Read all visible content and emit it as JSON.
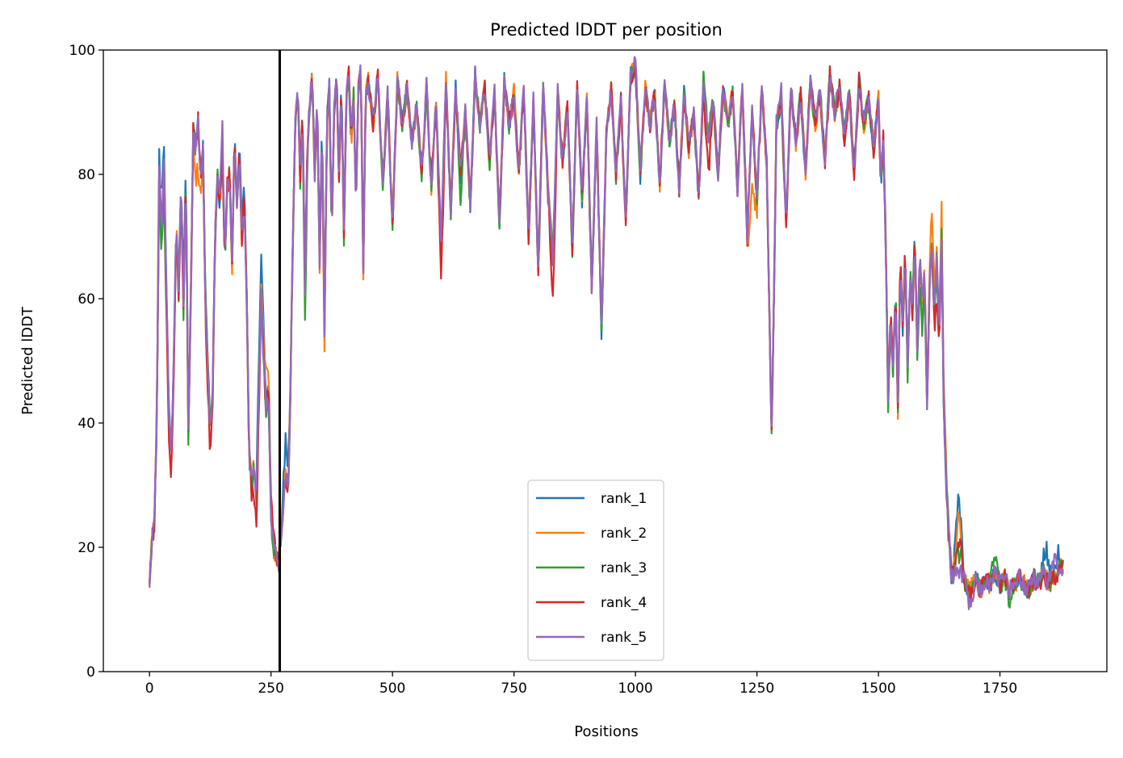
{
  "chart_data": {
    "type": "line",
    "title": "Predicted lDDT per position",
    "xlabel": "Positions",
    "ylabel": "Predicted lDDT",
    "xlim": [
      -95,
      1970
    ],
    "ylim": [
      0,
      100
    ],
    "xticks": [
      0,
      250,
      500,
      750,
      1000,
      1250,
      1500,
      1750
    ],
    "yticks": [
      0,
      20,
      40,
      60,
      80,
      100
    ],
    "grid": false,
    "legend_position": "bottom-center",
    "vline_x": 268,
    "vline_color": "#000000",
    "base_profile": [
      [
        0,
        15
      ],
      [
        5,
        21
      ],
      [
        10,
        24
      ],
      [
        15,
        40
      ],
      [
        20,
        80
      ],
      [
        25,
        70
      ],
      [
        30,
        82
      ],
      [
        35,
        60
      ],
      [
        40,
        42
      ],
      [
        45,
        35
      ],
      [
        50,
        50
      ],
      [
        55,
        72
      ],
      [
        60,
        60
      ],
      [
        65,
        78
      ],
      [
        70,
        58
      ],
      [
        75,
        80
      ],
      [
        80,
        38
      ],
      [
        85,
        60
      ],
      [
        90,
        87
      ],
      [
        95,
        84
      ],
      [
        100,
        89
      ],
      [
        105,
        80
      ],
      [
        110,
        84
      ],
      [
        115,
        60
      ],
      [
        120,
        50
      ],
      [
        125,
        38
      ],
      [
        130,
        45
      ],
      [
        135,
        70
      ],
      [
        140,
        80
      ],
      [
        145,
        75
      ],
      [
        150,
        84
      ],
      [
        155,
        66
      ],
      [
        160,
        78
      ],
      [
        165,
        80
      ],
      [
        170,
        65
      ],
      [
        175,
        86
      ],
      [
        180,
        75
      ],
      [
        185,
        83
      ],
      [
        190,
        70
      ],
      [
        195,
        76
      ],
      [
        200,
        60
      ],
      [
        205,
        35
      ],
      [
        210,
        30
      ],
      [
        215,
        33
      ],
      [
        220,
        28
      ],
      [
        225,
        45
      ],
      [
        230,
        60
      ],
      [
        235,
        50
      ],
      [
        240,
        42
      ],
      [
        245,
        45
      ],
      [
        250,
        25
      ],
      [
        255,
        20
      ],
      [
        260,
        19
      ],
      [
        265,
        18
      ],
      [
        270,
        22
      ],
      [
        275,
        26
      ],
      [
        280,
        32
      ],
      [
        285,
        28
      ],
      [
        290,
        45
      ],
      [
        295,
        70
      ],
      [
        300,
        88
      ],
      [
        305,
        93
      ],
      [
        310,
        80
      ],
      [
        315,
        90
      ],
      [
        320,
        62
      ],
      [
        325,
        85
      ],
      [
        330,
        92
      ],
      [
        335,
        96
      ],
      [
        340,
        80
      ],
      [
        345,
        92
      ],
      [
        350,
        66
      ],
      [
        355,
        89
      ],
      [
        360,
        55
      ],
      [
        365,
        88
      ],
      [
        370,
        94
      ],
      [
        375,
        70
      ],
      [
        380,
        90
      ],
      [
        385,
        96
      ],
      [
        390,
        80
      ],
      [
        395,
        94
      ],
      [
        400,
        70
      ],
      [
        405,
        92
      ],
      [
        410,
        96
      ],
      [
        415,
        85
      ],
      [
        420,
        93
      ],
      [
        425,
        75
      ],
      [
        430,
        94
      ],
      [
        435,
        97
      ],
      [
        440,
        64
      ],
      [
        445,
        93
      ],
      [
        450,
        95
      ],
      [
        460,
        88
      ],
      [
        470,
        96
      ],
      [
        480,
        78
      ],
      [
        490,
        93
      ],
      [
        500,
        72
      ],
      [
        510,
        95
      ],
      [
        520,
        88
      ],
      [
        530,
        94
      ],
      [
        540,
        85
      ],
      [
        550,
        91
      ],
      [
        560,
        80
      ],
      [
        570,
        94
      ],
      [
        580,
        78
      ],
      [
        590,
        92
      ],
      [
        600,
        68
      ],
      [
        610,
        95
      ],
      [
        620,
        74
      ],
      [
        630,
        94
      ],
      [
        640,
        80
      ],
      [
        650,
        90
      ],
      [
        660,
        75
      ],
      [
        670,
        96
      ],
      [
        680,
        88
      ],
      [
        690,
        94
      ],
      [
        700,
        82
      ],
      [
        710,
        93
      ],
      [
        720,
        72
      ],
      [
        730,
        95
      ],
      [
        740,
        88
      ],
      [
        750,
        93
      ],
      [
        760,
        80
      ],
      [
        770,
        94
      ],
      [
        780,
        70
      ],
      [
        790,
        92
      ],
      [
        800,
        64
      ],
      [
        810,
        94
      ],
      [
        820,
        78
      ],
      [
        830,
        66
      ],
      [
        840,
        93
      ],
      [
        850,
        82
      ],
      [
        860,
        91
      ],
      [
        870,
        68
      ],
      [
        880,
        95
      ],
      [
        890,
        76
      ],
      [
        900,
        92
      ],
      [
        910,
        62
      ],
      [
        920,
        88
      ],
      [
        930,
        55
      ],
      [
        940,
        86
      ],
      [
        950,
        94
      ],
      [
        960,
        80
      ],
      [
        970,
        92
      ],
      [
        980,
        72
      ],
      [
        990,
        96
      ],
      [
        1000,
        97
      ],
      [
        1010,
        80
      ],
      [
        1020,
        94
      ],
      [
        1030,
        88
      ],
      [
        1040,
        93
      ],
      [
        1050,
        78
      ],
      [
        1060,
        95
      ],
      [
        1070,
        85
      ],
      [
        1080,
        91
      ],
      [
        1090,
        78
      ],
      [
        1100,
        93
      ],
      [
        1110,
        84
      ],
      [
        1120,
        90
      ],
      [
        1130,
        76
      ],
      [
        1140,
        95
      ],
      [
        1150,
        86
      ],
      [
        1160,
        92
      ],
      [
        1170,
        80
      ],
      [
        1180,
        94
      ],
      [
        1190,
        88
      ],
      [
        1200,
        93
      ],
      [
        1210,
        78
      ],
      [
        1220,
        94
      ],
      [
        1230,
        70
      ],
      [
        1240,
        90
      ],
      [
        1250,
        76
      ],
      [
        1260,
        94
      ],
      [
        1270,
        82
      ],
      [
        1280,
        38
      ],
      [
        1285,
        60
      ],
      [
        1290,
        88
      ],
      [
        1300,
        92
      ],
      [
        1310,
        72
      ],
      [
        1320,
        94
      ],
      [
        1330,
        85
      ],
      [
        1340,
        93
      ],
      [
        1350,
        80
      ],
      [
        1360,
        95
      ],
      [
        1370,
        88
      ],
      [
        1380,
        93
      ],
      [
        1390,
        82
      ],
      [
        1400,
        96
      ],
      [
        1410,
        90
      ],
      [
        1420,
        94
      ],
      [
        1430,
        86
      ],
      [
        1440,
        93
      ],
      [
        1450,
        80
      ],
      [
        1460,
        95
      ],
      [
        1470,
        88
      ],
      [
        1480,
        92
      ],
      [
        1490,
        84
      ],
      [
        1500,
        92
      ],
      [
        1505,
        78
      ],
      [
        1510,
        86
      ],
      [
        1515,
        70
      ],
      [
        1520,
        44
      ],
      [
        1525,
        58
      ],
      [
        1530,
        48
      ],
      [
        1535,
        62
      ],
      [
        1540,
        42
      ],
      [
        1545,
        66
      ],
      [
        1550,
        55
      ],
      [
        1555,
        68
      ],
      [
        1560,
        48
      ],
      [
        1565,
        64
      ],
      [
        1570,
        58
      ],
      [
        1575,
        70
      ],
      [
        1580,
        52
      ],
      [
        1585,
        66
      ],
      [
        1590,
        60
      ],
      [
        1595,
        64
      ],
      [
        1600,
        42
      ],
      [
        1605,
        62
      ],
      [
        1610,
        68
      ],
      [
        1615,
        58
      ],
      [
        1620,
        66
      ],
      [
        1625,
        54
      ],
      [
        1630,
        70
      ],
      [
        1635,
        40
      ],
      [
        1640,
        30
      ],
      [
        1645,
        22
      ],
      [
        1650,
        16
      ],
      [
        1655,
        15
      ],
      [
        1660,
        16
      ],
      [
        1665,
        15
      ],
      [
        1670,
        16
      ],
      [
        1680,
        14
      ],
      [
        1690,
        12
      ],
      [
        1700,
        15
      ],
      [
        1710,
        13
      ],
      [
        1720,
        15
      ],
      [
        1730,
        14
      ],
      [
        1740,
        16
      ],
      [
        1750,
        14
      ],
      [
        1760,
        15
      ],
      [
        1770,
        13
      ],
      [
        1780,
        14
      ],
      [
        1790,
        15
      ],
      [
        1800,
        14
      ],
      [
        1810,
        13
      ],
      [
        1820,
        15
      ],
      [
        1830,
        14
      ],
      [
        1840,
        16
      ],
      [
        1850,
        14
      ],
      [
        1860,
        15
      ],
      [
        1870,
        16
      ],
      [
        1875,
        17
      ],
      [
        1880,
        17
      ]
    ],
    "series": [
      {
        "name": "rank_1",
        "color": "#1f77b4",
        "deviations": [
          [
            25,
            5
          ],
          [
            70,
            4
          ],
          [
            190,
            3
          ],
          [
            230,
            8
          ],
          [
            280,
            6
          ],
          [
            1640,
            -2
          ],
          [
            1665,
            14
          ],
          [
            1845,
            5
          ],
          [
            1870,
            3
          ]
        ]
      },
      {
        "name": "rank_2",
        "color": "#ff7f0e",
        "deviations": [
          [
            100,
            -8
          ],
          [
            240,
            6
          ],
          [
            360,
            -4
          ],
          [
            1240,
            -12
          ],
          [
            1610,
            6
          ],
          [
            1630,
            5
          ],
          [
            1665,
            10
          ],
          [
            1690,
            2
          ]
        ]
      },
      {
        "name": "rank_3",
        "color": "#2ca02c",
        "deviations": [
          [
            30,
            -6
          ],
          [
            320,
            -6
          ],
          [
            640,
            -4
          ],
          [
            1520,
            -3
          ],
          [
            1590,
            -5
          ],
          [
            1665,
            4
          ],
          [
            1740,
            3
          ],
          [
            1770,
            -2
          ]
        ]
      },
      {
        "name": "rank_4",
        "color": "#d62728",
        "deviations": [
          [
            40,
            -6
          ],
          [
            120,
            -5
          ],
          [
            220,
            -6
          ],
          [
            250,
            3
          ],
          [
            600,
            -6
          ],
          [
            830,
            -7
          ],
          [
            1150,
            -6
          ],
          [
            1620,
            -6
          ],
          [
            1665,
            6
          ]
        ]
      },
      {
        "name": "rank_5",
        "color": "#9467bd",
        "deviations": [
          [
            60,
            2
          ],
          [
            150,
            3
          ],
          [
            270,
            -2
          ],
          [
            1000,
            1
          ],
          [
            1300,
            2
          ],
          [
            1690,
            -2
          ],
          [
            1860,
            3
          ]
        ]
      }
    ]
  }
}
